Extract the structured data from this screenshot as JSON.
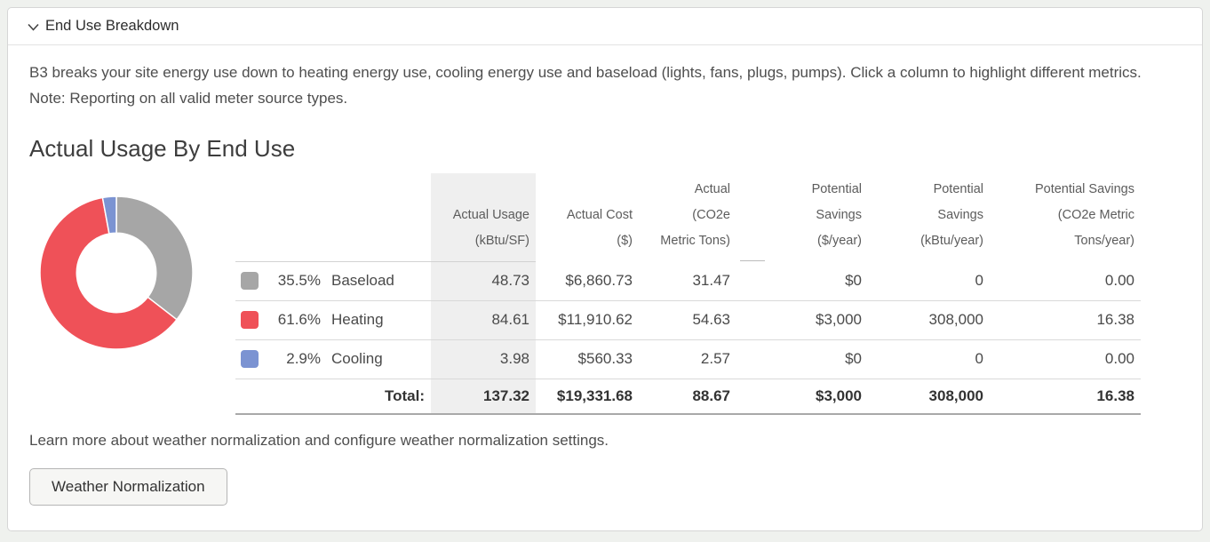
{
  "panel": {
    "header": {
      "title": "End Use Breakdown"
    },
    "description": "B3 breaks your site energy use down to heating energy use, cooling energy use and baseload (lights, fans, plugs, pumps). Click a column to highlight different metrics. Note: Reporting on all valid meter source types.",
    "section_title": "Actual Usage By End Use",
    "footer_text": "Learn more about weather normalization and configure weather normalization settings.",
    "button_label": "Weather Normalization"
  },
  "icons": {
    "collapse": "chevron-down"
  },
  "chart_data": {
    "type": "pie",
    "subtype": "donut",
    "title": "Actual Usage By End Use",
    "start_angle_deg": 0,
    "direction": "clockwise",
    "inner_radius_ratio": 0.52,
    "segments": [
      {
        "label": "Baseload",
        "percent": 35.5,
        "color": "#a6a6a6"
      },
      {
        "label": "Heating",
        "percent": 61.6,
        "color": "#ef5158"
      },
      {
        "label": "Cooling",
        "percent": 2.9,
        "color": "#7b93d2"
      }
    ]
  },
  "table": {
    "columns": [
      {
        "lines": [
          "Actual Usage",
          "(kBtu/SF)"
        ],
        "highlighted": true
      },
      {
        "lines": [
          "Actual Cost",
          "($)"
        ]
      },
      {
        "lines": [
          "Actual",
          "(CO2e",
          "Metric Tons)"
        ]
      },
      {
        "lines": [
          "Potential",
          "Savings",
          "($/year)"
        ]
      },
      {
        "lines": [
          "Potential",
          "Savings",
          "(kBtu/year)"
        ]
      },
      {
        "lines": [
          "Potential Savings",
          "(CO2e Metric",
          "Tons/year)"
        ]
      }
    ],
    "rows": [
      {
        "percent": "35.5%",
        "label": "Baseload",
        "color": "#a6a6a6",
        "values": [
          "48.73",
          "$6,860.73",
          "31.47",
          "$0",
          "0",
          "0.00"
        ]
      },
      {
        "percent": "61.6%",
        "label": "Heating",
        "color": "#ef5158",
        "values": [
          "84.61",
          "$11,910.62",
          "54.63",
          "$3,000",
          "308,000",
          "16.38"
        ]
      },
      {
        "percent": "2.9%",
        "label": "Cooling",
        "color": "#7b93d2",
        "values": [
          "3.98",
          "$560.33",
          "2.57",
          "$0",
          "0",
          "0.00"
        ]
      }
    ],
    "total": {
      "label": "Total:",
      "values": [
        "137.32",
        "$19,331.68",
        "88.67",
        "$3,000",
        "308,000",
        "16.38"
      ]
    }
  },
  "colors": {
    "page_background": "#eff1ee",
    "card_background": "#ffffff",
    "card_border": "#d6d6d6",
    "highlight_column": "#efefef",
    "baseload": "#a6a6a6",
    "heating": "#ef5158",
    "cooling": "#7b93d2"
  }
}
